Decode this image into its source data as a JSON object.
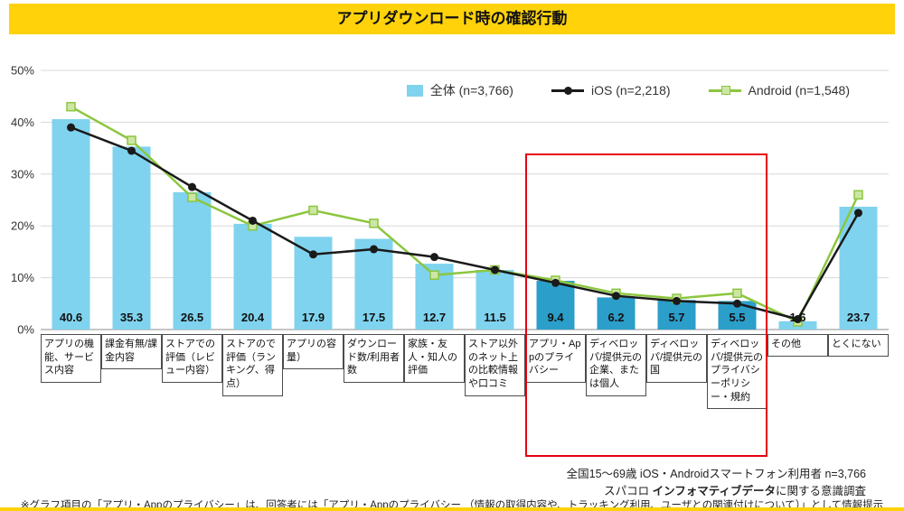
{
  "title": "アプリダウンロード時の確認行動",
  "legend": [
    {
      "label": "全体 (n=3,766)"
    },
    {
      "label": "iOS (n=2,218)"
    },
    {
      "label": "Android (n=1,548)"
    }
  ],
  "colors": {
    "accent_yellow": "#FFD20A",
    "bar": "#7FD3EE",
    "bar_highlight": "#2B9EC9",
    "ios": "#1A1A1A",
    "android": "#8CC63F",
    "android_marker": "#CDE6A5",
    "highlight_box": "#E60012",
    "grid": "#D8D8D8",
    "axis": "#8C8C8C"
  },
  "chart_data": {
    "type": "bar",
    "title": "アプリダウンロード時の確認行動",
    "xlabel": "",
    "ylabel": "",
    "ylim": [
      0,
      50
    ],
    "yticks": [
      "0%",
      "10%",
      "20%",
      "30%",
      "40%",
      "50%"
    ],
    "grid": true,
    "legend_position": "top",
    "categories": [
      "アプリの機能、サービス内容",
      "課金有無/課金内容",
      "ストアでの評価（レビュー内容）",
      "ストアので評価（ランキング、得点）",
      "アプリの容量）",
      "ダウンロード数/利用者数",
      "家族・友人・知人の評価",
      "ストア以外のネット上の比較情報や口コミ",
      "アプリ・Appのプライバシー",
      "ディベロッパ/提供元の企業、または個人",
      "ディベロッパ/提供元の国",
      "ディベロッパ/提供元のプライバシーポリシー・規約",
      "その他",
      "とくにない"
    ],
    "series": [
      {
        "name": "全体 (n=3,766)",
        "type": "bar",
        "values": [
          40.6,
          35.3,
          26.5,
          20.4,
          17.9,
          17.5,
          12.7,
          11.5,
          9.4,
          6.2,
          5.7,
          5.5,
          1.6,
          23.7
        ]
      },
      {
        "name": "iOS (n=2,218)",
        "type": "line",
        "values": [
          39.0,
          34.5,
          27.5,
          21.0,
          14.5,
          15.5,
          14.0,
          11.5,
          9.0,
          6.5,
          5.5,
          5.0,
          2.0,
          22.5
        ]
      },
      {
        "name": "Android (n=1,548)",
        "type": "line",
        "values": [
          43.0,
          36.5,
          25.5,
          20.0,
          23.0,
          20.5,
          10.5,
          11.5,
          9.5,
          7.0,
          6.0,
          7.0,
          1.5,
          26.0
        ]
      }
    ],
    "highlight": [
      8,
      9,
      10,
      11
    ]
  },
  "footnotes": {
    "survey": "全国15〜69歳 iOS・Androidスマートフォン利用者 n=3,766",
    "source_prefix": "スパコロ ",
    "source_bold": "インフォマティブデータ",
    "source_suffix": "に関する意識調査",
    "note": "※グラフ項目の「アプリ・Appのプライバシー」は、回答者には「アプリ・Appのプライバシー （情報の取得内容や、トラッキング利用、ユーザとの関連付けについて）」として情報提示"
  }
}
